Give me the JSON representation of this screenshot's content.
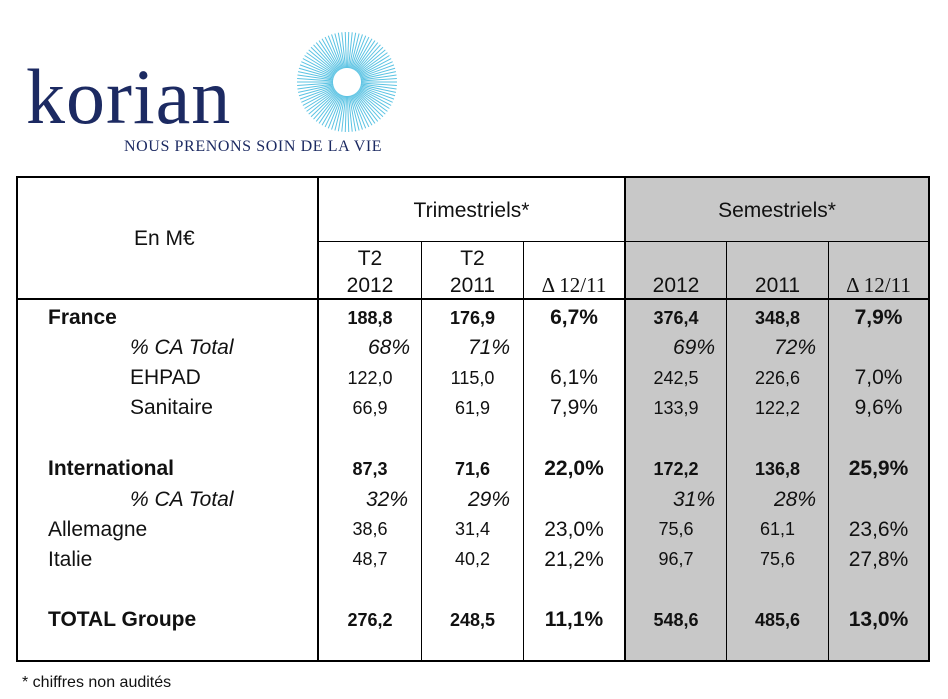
{
  "logo": {
    "brand": "KORIAN",
    "wordmark": "korian",
    "tagline": "NOUS PRENONS SOIN DE LA VIE",
    "color": "#1c2a62",
    "sun_color": "#5bc3e3"
  },
  "header": {
    "unit_label": "En M€",
    "group_quarterly": "Trimestriels*",
    "group_semester": "Semestriels*",
    "col_t2_2012_line1": "T2",
    "col_t2_2012_line2": "2012",
    "col_t2_2011_line1": "T2",
    "col_t2_2011_line2": "2011",
    "col_delta_q": "Δ 12/11",
    "col_2012": "2012",
    "col_2011": "2011",
    "col_delta_s": "Δ 12/11"
  },
  "rows": {
    "france": {
      "label": "France",
      "t2_2012": "188,8",
      "t2_2011": "176,9",
      "delta_q": "6,7%",
      "s_2012": "376,4",
      "s_2011": "348,8",
      "delta_s": "7,9%"
    },
    "france_pct": {
      "label": "% CA Total",
      "t2_2012": "68%",
      "t2_2011": "71%",
      "s_2012": "69%",
      "s_2011": "72%"
    },
    "ehpad": {
      "label": "EHPAD",
      "t2_2012": "122,0",
      "t2_2011": "115,0",
      "delta_q": "6,1%",
      "s_2012": "242,5",
      "s_2011": "226,6",
      "delta_s": "7,0%"
    },
    "sanitaire": {
      "label": "Sanitaire",
      "t2_2012": "66,9",
      "t2_2011": "61,9",
      "delta_q": "7,9%",
      "s_2012": "133,9",
      "s_2011": "122,2",
      "delta_s": "9,6%"
    },
    "international": {
      "label": "International",
      "t2_2012": "87,3",
      "t2_2011": "71,6",
      "delta_q": "22,0%",
      "s_2012": "172,2",
      "s_2011": "136,8",
      "delta_s": "25,9%"
    },
    "international_pct": {
      "label": "% CA Total",
      "t2_2012": "32%",
      "t2_2011": "29%",
      "s_2012": "31%",
      "s_2011": "28%"
    },
    "allemagne": {
      "label": "Allemagne",
      "t2_2012": "38,6",
      "t2_2011": "31,4",
      "delta_q": "23,0%",
      "s_2012": "75,6",
      "s_2011": "61,1",
      "delta_s": "23,6%"
    },
    "italie": {
      "label": "Italie",
      "t2_2012": "48,7",
      "t2_2011": "40,2",
      "delta_q": "21,2%",
      "s_2012": "96,7",
      "s_2011": "75,6",
      "delta_s": "27,8%"
    },
    "total": {
      "label": "TOTAL Groupe",
      "t2_2012": "276,2",
      "t2_2011": "248,5",
      "delta_q": "11,1%",
      "s_2012": "548,6",
      "s_2011": "485,6",
      "delta_s": "13,0%"
    }
  },
  "footnote": "* chiffres non audités",
  "colors": {
    "semester_shade": "#c8c8c8",
    "rule": "#000000"
  }
}
